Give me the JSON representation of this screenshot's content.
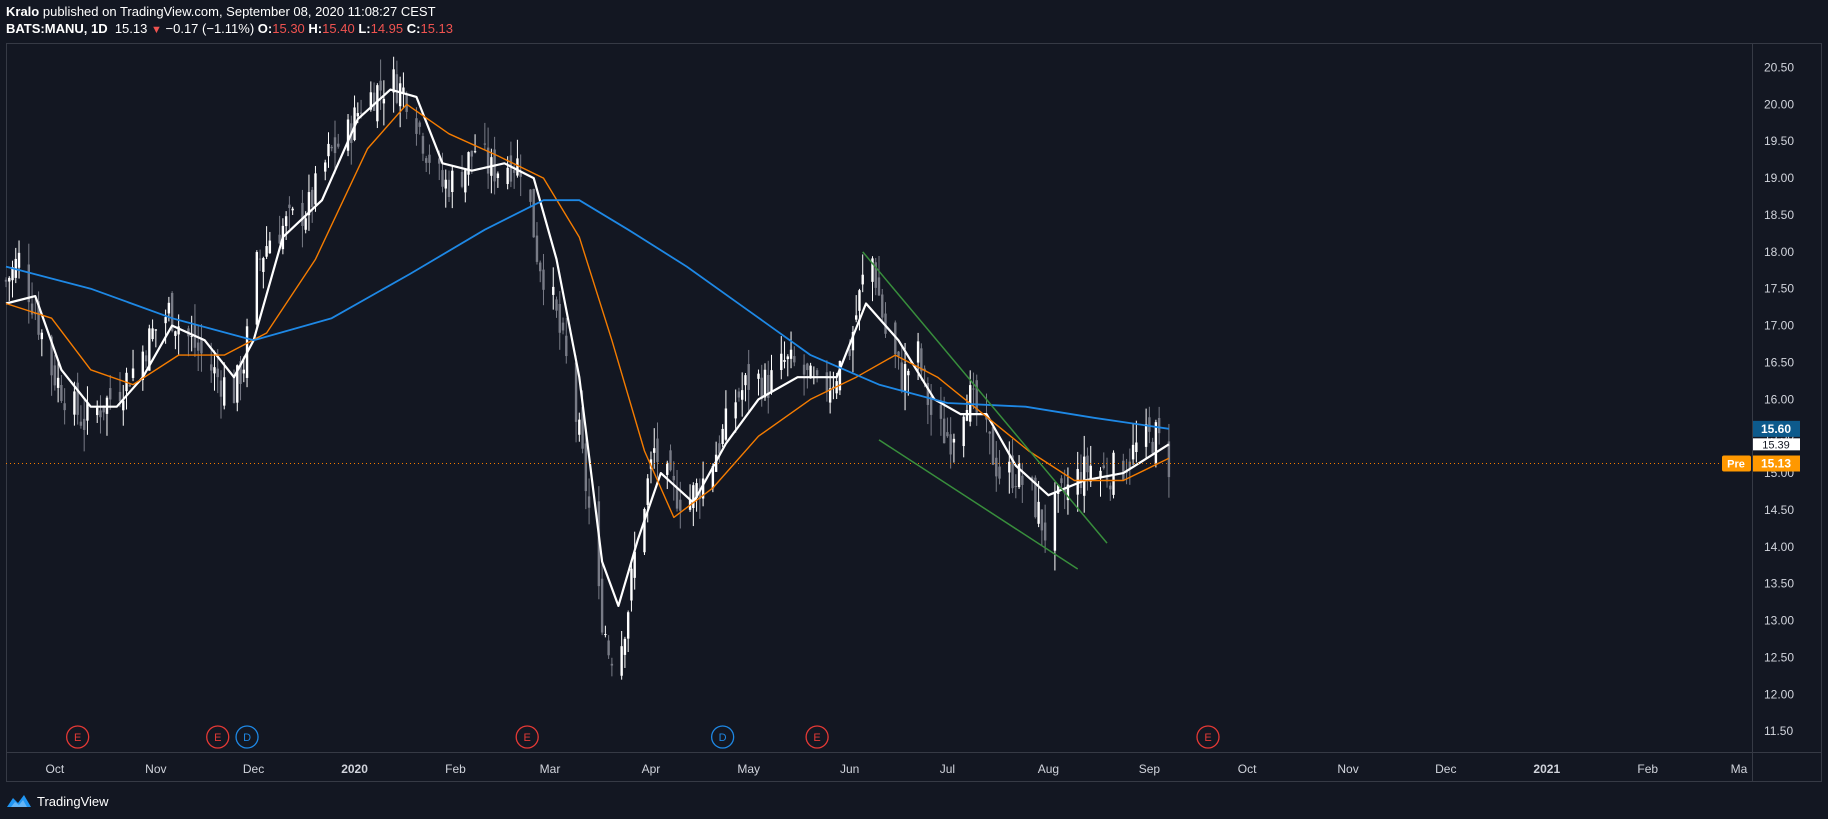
{
  "header": {
    "author": "Kralo",
    "published": "published on TradingView.com, September 08, 2020 11:08:27 CEST"
  },
  "legend": {
    "symbol": "BATS:MANU, 1D",
    "last": "15.13",
    "change": "−0.17 (−1.11%)",
    "o_label": "O:",
    "o": "15.30",
    "h_label": "H:",
    "h": "15.40",
    "l_label": "L:",
    "l": "14.95",
    "c_label": "C:",
    "c": "15.13"
  },
  "footer": {
    "brand": "TradingView",
    "logo_icon": "tradingview-logo-icon"
  },
  "colors": {
    "background": "#131722",
    "candle": "#ffffff",
    "candle_dim": "#787b86",
    "ma_fast": "#ffffff",
    "ma_mid": "#f57c00",
    "ma_slow": "#1e88e5",
    "trendline": "#388e3c",
    "earnings": "#e53935",
    "dividend": "#1e88e5",
    "badge_slow": "#0d5a8c",
    "badge_pre": "#ff9800"
  },
  "chart_data": {
    "type": "candlestick",
    "symbol": "BATS:MANU",
    "interval": "1D",
    "ylim": [
      11.3,
      20.75
    ],
    "y_ticks": [
      11.5,
      12.0,
      12.5,
      13.0,
      13.5,
      14.0,
      14.5,
      15.0,
      15.5,
      16.0,
      16.5,
      17.0,
      17.5,
      18.0,
      18.5,
      19.0,
      19.5,
      20.0,
      20.5
    ],
    "x_range": [
      "2019-09-16",
      "2021-03-05"
    ],
    "x_ticks": [
      {
        "date": "2019-10-01",
        "label": "Oct"
      },
      {
        "date": "2019-11-01",
        "label": "Nov"
      },
      {
        "date": "2019-12-01",
        "label": "Dec"
      },
      {
        "date": "2020-01-01",
        "label": "2020"
      },
      {
        "date": "2020-02-01",
        "label": "Feb"
      },
      {
        "date": "2020-03-01",
        "label": "Mar"
      },
      {
        "date": "2020-04-01",
        "label": "Apr"
      },
      {
        "date": "2020-05-01",
        "label": "May"
      },
      {
        "date": "2020-06-01",
        "label": "Jun"
      },
      {
        "date": "2020-07-01",
        "label": "Jul"
      },
      {
        "date": "2020-08-01",
        "label": "Aug"
      },
      {
        "date": "2020-09-01",
        "label": "Sep"
      },
      {
        "date": "2020-10-01",
        "label": "Oct"
      },
      {
        "date": "2020-11-01",
        "label": "Nov"
      },
      {
        "date": "2020-12-01",
        "label": "Dec"
      },
      {
        "date": "2021-01-01",
        "label": "2021"
      },
      {
        "date": "2021-02-01",
        "label": "Feb"
      },
      {
        "date": "2021-03-01",
        "label": "Ma"
      }
    ],
    "price_path": [
      [
        "2019-09-16",
        17.6
      ],
      [
        "2019-09-20",
        17.9
      ],
      [
        "2019-09-25",
        17.2
      ],
      [
        "2019-09-30",
        16.4
      ],
      [
        "2019-10-05",
        16.0
      ],
      [
        "2019-10-10",
        15.7
      ],
      [
        "2019-10-15",
        15.9
      ],
      [
        "2019-10-20",
        16.1
      ],
      [
        "2019-10-25",
        16.4
      ],
      [
        "2019-10-31",
        16.9
      ],
      [
        "2019-11-05",
        17.2
      ],
      [
        "2019-11-10",
        16.9
      ],
      [
        "2019-11-15",
        16.6
      ],
      [
        "2019-11-20",
        16.3
      ],
      [
        "2019-11-25",
        16.1
      ],
      [
        "2019-11-28",
        16.5
      ],
      [
        "2019-12-02",
        17.8
      ],
      [
        "2019-12-06",
        18.2
      ],
      [
        "2019-12-12",
        18.4
      ],
      [
        "2019-12-18",
        18.6
      ],
      [
        "2019-12-24",
        19.3
      ],
      [
        "2019-12-30",
        19.6
      ],
      [
        "2020-01-03",
        20.0
      ],
      [
        "2020-01-08",
        20.2
      ],
      [
        "2020-01-13",
        20.3
      ],
      [
        "2020-01-18",
        20.1
      ],
      [
        "2020-01-23",
        19.4
      ],
      [
        "2020-01-28",
        18.9
      ],
      [
        "2020-02-02",
        19.0
      ],
      [
        "2020-02-07",
        19.4
      ],
      [
        "2020-02-12",
        19.1
      ],
      [
        "2020-02-17",
        19.2
      ],
      [
        "2020-02-22",
        19.2
      ],
      [
        "2020-02-26",
        18.0
      ],
      [
        "2020-03-02",
        17.3
      ],
      [
        "2020-03-06",
        16.5
      ],
      [
        "2020-03-10",
        15.5
      ],
      [
        "2020-03-13",
        14.5
      ],
      [
        "2020-03-16",
        13.3
      ],
      [
        "2020-03-19",
        12.6
      ],
      [
        "2020-03-22",
        12.5
      ],
      [
        "2020-03-25",
        13.2
      ],
      [
        "2020-03-28",
        14.2
      ],
      [
        "2020-04-02",
        15.3
      ],
      [
        "2020-04-07",
        14.8
      ],
      [
        "2020-04-12",
        14.6
      ],
      [
        "2020-04-17",
        14.9
      ],
      [
        "2020-04-22",
        15.4
      ],
      [
        "2020-04-27",
        16.0
      ],
      [
        "2020-05-02",
        16.3
      ],
      [
        "2020-05-07",
        16.2
      ],
      [
        "2020-05-12",
        16.5
      ],
      [
        "2020-05-17",
        16.4
      ],
      [
        "2020-05-22",
        16.1
      ],
      [
        "2020-05-27",
        16.3
      ],
      [
        "2020-06-01",
        16.7
      ],
      [
        "2020-06-05",
        17.6
      ],
      [
        "2020-06-08",
        17.9
      ],
      [
        "2020-06-12",
        16.9
      ],
      [
        "2020-06-17",
        16.3
      ],
      [
        "2020-06-22",
        16.6
      ],
      [
        "2020-06-27",
        15.6
      ],
      [
        "2020-07-02",
        15.5
      ],
      [
        "2020-07-07",
        16.1
      ],
      [
        "2020-07-12",
        15.6
      ],
      [
        "2020-07-17",
        15.0
      ],
      [
        "2020-07-22",
        15.0
      ],
      [
        "2020-07-27",
        14.7
      ],
      [
        "2020-07-31",
        14.2
      ],
      [
        "2020-08-04",
        14.6
      ],
      [
        "2020-08-09",
        14.9
      ],
      [
        "2020-08-14",
        15.1
      ],
      [
        "2020-08-19",
        15.0
      ],
      [
        "2020-08-24",
        15.1
      ],
      [
        "2020-08-29",
        15.4
      ],
      [
        "2020-09-03",
        15.5
      ],
      [
        "2020-09-07",
        15.13
      ]
    ],
    "series": [
      {
        "key": "ma_fast",
        "points": [
          [
            "2019-09-16",
            17.3
          ],
          [
            "2019-09-25",
            17.4
          ],
          [
            "2019-10-03",
            16.4
          ],
          [
            "2019-10-12",
            15.9
          ],
          [
            "2019-10-20",
            15.9
          ],
          [
            "2019-10-28",
            16.3
          ],
          [
            "2019-11-06",
            17.0
          ],
          [
            "2019-11-16",
            16.8
          ],
          [
            "2019-11-25",
            16.3
          ],
          [
            "2019-12-01",
            16.8
          ],
          [
            "2019-12-10",
            18.2
          ],
          [
            "2019-12-22",
            18.7
          ],
          [
            "2020-01-02",
            19.8
          ],
          [
            "2020-01-12",
            20.2
          ],
          [
            "2020-01-20",
            20.1
          ],
          [
            "2020-01-28",
            19.2
          ],
          [
            "2020-02-06",
            19.1
          ],
          [
            "2020-02-16",
            19.2
          ],
          [
            "2020-02-25",
            19.0
          ],
          [
            "2020-03-03",
            17.9
          ],
          [
            "2020-03-10",
            16.3
          ],
          [
            "2020-03-17",
            13.8
          ],
          [
            "2020-03-22",
            13.2
          ],
          [
            "2020-03-28",
            14.1
          ],
          [
            "2020-04-04",
            15.0
          ],
          [
            "2020-04-14",
            14.6
          ],
          [
            "2020-04-24",
            15.4
          ],
          [
            "2020-05-04",
            16.0
          ],
          [
            "2020-05-16",
            16.3
          ],
          [
            "2020-05-28",
            16.3
          ],
          [
            "2020-06-06",
            17.3
          ],
          [
            "2020-06-16",
            16.8
          ],
          [
            "2020-06-27",
            16.0
          ],
          [
            "2020-07-05",
            15.8
          ],
          [
            "2020-07-13",
            15.8
          ],
          [
            "2020-07-22",
            15.1
          ],
          [
            "2020-08-01",
            14.7
          ],
          [
            "2020-08-12",
            14.9
          ],
          [
            "2020-08-24",
            15.0
          ],
          [
            "2020-09-07",
            15.39
          ]
        ]
      },
      {
        "key": "ma_mid",
        "points": [
          [
            "2019-09-16",
            17.3
          ],
          [
            "2019-09-30",
            17.1
          ],
          [
            "2019-10-12",
            16.4
          ],
          [
            "2019-10-25",
            16.2
          ],
          [
            "2019-11-08",
            16.6
          ],
          [
            "2019-11-22",
            16.6
          ],
          [
            "2019-12-05",
            16.9
          ],
          [
            "2019-12-20",
            17.9
          ],
          [
            "2020-01-05",
            19.4
          ],
          [
            "2020-01-17",
            20.0
          ],
          [
            "2020-01-30",
            19.6
          ],
          [
            "2020-02-14",
            19.3
          ],
          [
            "2020-02-28",
            19.0
          ],
          [
            "2020-03-10",
            18.2
          ],
          [
            "2020-03-20",
            16.8
          ],
          [
            "2020-03-30",
            15.3
          ],
          [
            "2020-04-08",
            14.4
          ],
          [
            "2020-04-20",
            14.8
          ],
          [
            "2020-05-04",
            15.5
          ],
          [
            "2020-05-20",
            16.0
          ],
          [
            "2020-06-03",
            16.3
          ],
          [
            "2020-06-15",
            16.6
          ],
          [
            "2020-06-28",
            16.3
          ],
          [
            "2020-07-12",
            15.8
          ],
          [
            "2020-07-26",
            15.3
          ],
          [
            "2020-08-09",
            14.9
          ],
          [
            "2020-08-24",
            14.9
          ],
          [
            "2020-09-07",
            15.2
          ]
        ]
      },
      {
        "key": "ma_slow",
        "points": [
          [
            "2019-09-16",
            17.8
          ],
          [
            "2019-10-12",
            17.5
          ],
          [
            "2019-11-06",
            17.1
          ],
          [
            "2019-12-01",
            16.8
          ],
          [
            "2019-12-25",
            17.1
          ],
          [
            "2020-01-18",
            17.7
          ],
          [
            "2020-02-10",
            18.3
          ],
          [
            "2020-02-28",
            18.7
          ],
          [
            "2020-03-10",
            18.7
          ],
          [
            "2020-03-25",
            18.3
          ],
          [
            "2020-04-12",
            17.8
          ],
          [
            "2020-05-01",
            17.2
          ],
          [
            "2020-05-20",
            16.6
          ],
          [
            "2020-06-10",
            16.2
          ],
          [
            "2020-07-01",
            15.95
          ],
          [
            "2020-07-25",
            15.9
          ],
          [
            "2020-08-15",
            15.75
          ],
          [
            "2020-09-07",
            15.6
          ]
        ]
      }
    ],
    "trendlines": [
      {
        "from": [
          "2020-06-05",
          18.0
        ],
        "to": [
          "2020-08-19",
          14.05
        ]
      },
      {
        "from": [
          "2020-06-10",
          15.45
        ],
        "to": [
          "2020-08-10",
          13.7
        ]
      }
    ],
    "last_price_line": 15.13,
    "price_badges": [
      {
        "value": "15.60",
        "style": "slow"
      },
      {
        "value": "15.39",
        "style": "fast"
      },
      {
        "value": "15.13",
        "style": "pre",
        "prefix": "Pre"
      }
    ],
    "events": [
      {
        "date": "2019-10-08",
        "label": "E",
        "kind": "earnings"
      },
      {
        "date": "2019-11-20",
        "label": "E",
        "kind": "earnings"
      },
      {
        "date": "2019-11-29",
        "label": "D",
        "kind": "dividend"
      },
      {
        "date": "2020-02-23",
        "label": "E",
        "kind": "earnings"
      },
      {
        "date": "2020-04-23",
        "label": "D",
        "kind": "dividend"
      },
      {
        "date": "2020-05-22",
        "label": "E",
        "kind": "earnings"
      },
      {
        "date": "2020-09-19",
        "label": "E",
        "kind": "earnings"
      }
    ]
  }
}
